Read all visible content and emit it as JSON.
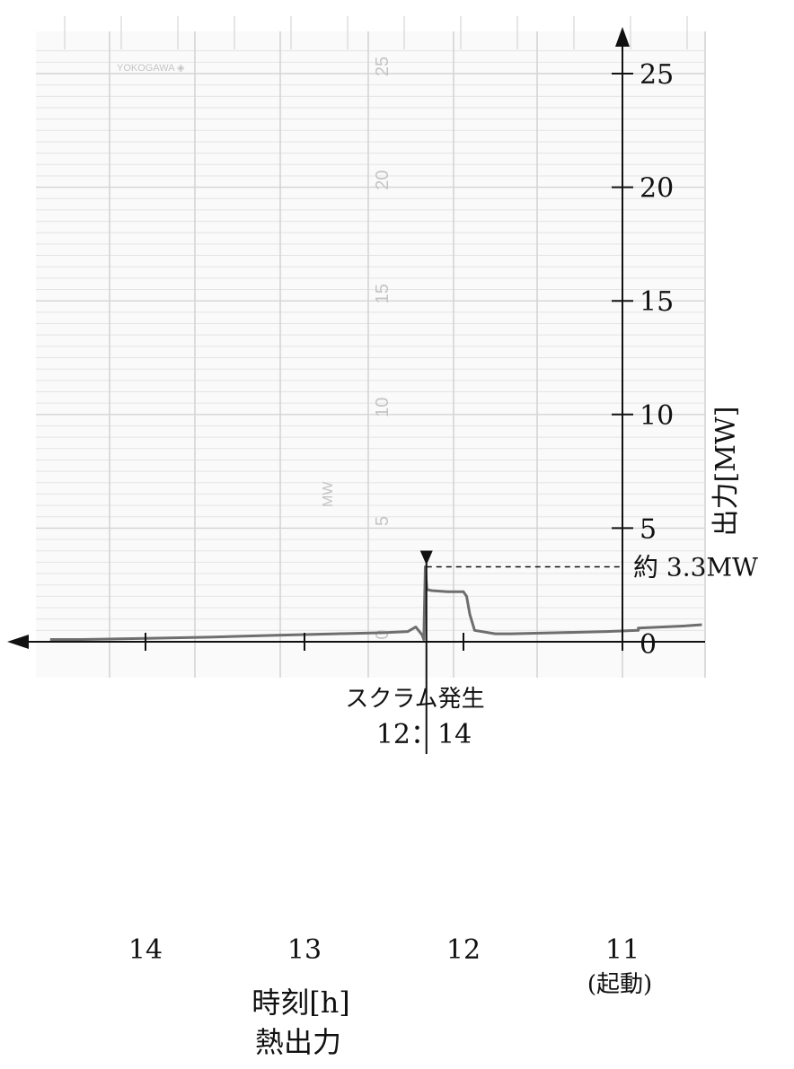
{
  "chart_data": {
    "type": "line",
    "title": "熱出力",
    "xlabel": "時刻[h]",
    "ylabel": "出力[MW]",
    "x_direction": "right-to-left",
    "xlim": [
      10.5,
      14.6
    ],
    "ylim": [
      0,
      25
    ],
    "x_ticks": [
      14,
      13,
      12,
      11
    ],
    "x_tick_labels": [
      "14",
      "13",
      "12",
      "11"
    ],
    "x_tick_sublabel": "(起動)",
    "y_ticks": [
      0,
      5,
      10,
      15,
      20,
      25
    ],
    "y_tick_labels": [
      "0",
      "5",
      "10",
      "15",
      "20",
      "25"
    ],
    "grid": true,
    "paper": {
      "brand": "YOKOGAWA ◈",
      "unit": "MW",
      "scale_labels": [
        "0",
        "5",
        "10",
        "15",
        "20",
        "25"
      ]
    },
    "series": [
      {
        "color": "#6e6e6e",
        "x": [
          10.5,
          10.6,
          10.9,
          10.9,
          11.1,
          11.4,
          11.7,
          11.8,
          11.93,
          11.96,
          11.98,
          12.0,
          12.1,
          12.2,
          12.23,
          12.24,
          12.25,
          12.26,
          12.3,
          12.35,
          12.5,
          12.8,
          13.2,
          13.6,
          14.0,
          14.4,
          14.6
        ],
        "y": [
          0.75,
          0.7,
          0.6,
          0.5,
          0.45,
          0.4,
          0.35,
          0.35,
          0.5,
          1.2,
          2.0,
          2.2,
          2.2,
          2.25,
          2.3,
          3.3,
          0.1,
          0.3,
          0.65,
          0.45,
          0.4,
          0.35,
          0.28,
          0.2,
          0.15,
          0.1,
          0.1
        ]
      }
    ],
    "annotations": {
      "event_label": "スクラム発生",
      "event_time": "12：14",
      "event_x": 12.233,
      "peak_label": "約 3.3MW",
      "peak_value": 3.3
    }
  },
  "colors": {
    "grid": "#d4d4d4",
    "grid_minor": "#e4e4e4",
    "trace": "#6e6e6e",
    "axis": "#111111"
  }
}
